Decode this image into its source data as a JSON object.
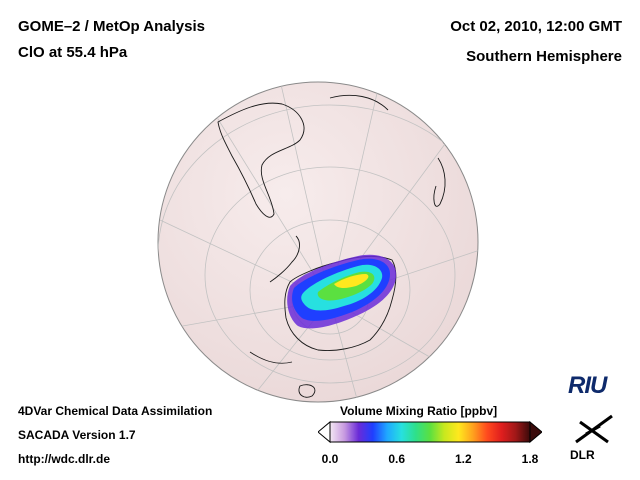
{
  "header": {
    "title_line1": "GOME–2 / MetOp Analysis",
    "title_line2": "ClO at 55.4 hPa",
    "datetime": "Oct 02, 2010, 12:00 GMT",
    "hemisphere": "Southern Hemisphere"
  },
  "footer": {
    "line1": "4DVar Chemical Data Assimilation",
    "line2": "SACADA Version 1.7",
    "line3": "http://wdc.dlr.de"
  },
  "colorbar": {
    "title": "Volume Mixing Ratio [ppbv]",
    "ticks": [
      "0.0",
      "0.6",
      "1.2",
      "1.8"
    ],
    "min": 0.0,
    "max": 1.8,
    "colors": [
      "#f4e8f4",
      "#c89be0",
      "#6a2bd8",
      "#1f3fff",
      "#1fa8ff",
      "#27e0e0",
      "#2ee08a",
      "#5be040",
      "#c8e81e",
      "#ffe81e",
      "#ffa21e",
      "#ff4a1e",
      "#e01e1e",
      "#a01818",
      "#3a0a0a"
    ]
  },
  "logos": {
    "riu": "RIU",
    "dlr": "DLR"
  },
  "colors": {
    "globe_fill": "#f2e4e4",
    "grid": "#bdbdbd",
    "coast": "#1a1a1a"
  }
}
